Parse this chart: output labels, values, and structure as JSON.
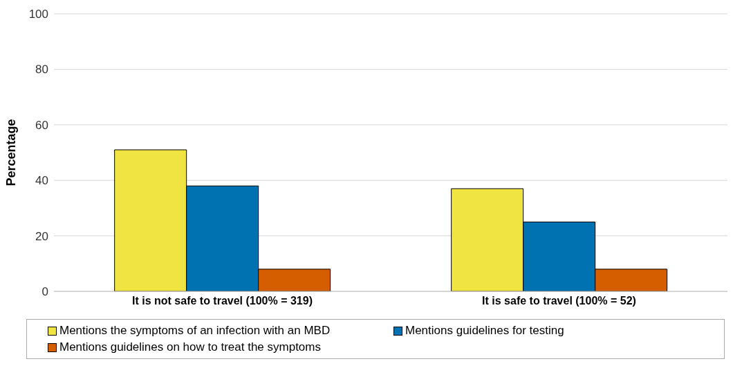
{
  "chart_data": {
    "type": "bar",
    "ylabel": "Percentage",
    "categories": [
      "It is not safe to travel (100% = 319)",
      "It is safe to travel (100% = 52)"
    ],
    "series": [
      {
        "name": "Mentions the symptoms of an infection with an MBD",
        "color": "#f0e442",
        "values": [
          51,
          37
        ]
      },
      {
        "name": "Mentions guidelines for testing",
        "color": "#0072b2",
        "values": [
          38,
          25
        ]
      },
      {
        "name": "Mentions guidelines on how to treat the symptoms",
        "color": "#d55e00",
        "values": [
          8,
          8
        ]
      }
    ],
    "ylim": [
      0,
      100
    ],
    "yticks": [
      0,
      20,
      40,
      60,
      80,
      100
    ],
    "grid": "y",
    "legend": "bottom"
  }
}
